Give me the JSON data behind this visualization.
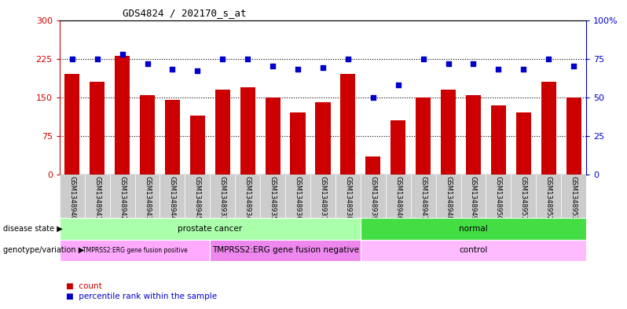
{
  "title": "GDS4824 / 202170_s_at",
  "samples": [
    "GSM1348940",
    "GSM1348941",
    "GSM1348942",
    "GSM1348943",
    "GSM1348944",
    "GSM1348945",
    "GSM1348933",
    "GSM1348934",
    "GSM1348935",
    "GSM1348936",
    "GSM1348937",
    "GSM1348938",
    "GSM1348939",
    "GSM1348946",
    "GSM1348947",
    "GSM1348948",
    "GSM1348949",
    "GSM1348950",
    "GSM1348951",
    "GSM1348952",
    "GSM1348953"
  ],
  "counts": [
    195,
    180,
    230,
    155,
    145,
    115,
    165,
    170,
    150,
    120,
    140,
    195,
    35,
    105,
    150,
    165,
    155,
    135,
    120,
    180,
    150
  ],
  "percentiles": [
    75,
    75,
    78,
    72,
    68,
    67,
    75,
    75,
    70,
    68,
    69,
    75,
    50,
    58,
    75,
    72,
    72,
    68,
    68,
    75,
    70
  ],
  "ylim_left": [
    0,
    300
  ],
  "ylim_right": [
    0,
    100
  ],
  "yticks_left": [
    0,
    75,
    150,
    225,
    300
  ],
  "yticks_right": [
    0,
    25,
    50,
    75,
    100
  ],
  "bar_color": "#cc0000",
  "dot_color": "#0000cc",
  "disease_state_groups": [
    {
      "label": "prostate cancer",
      "start": 0,
      "end": 12,
      "color": "#aaffaa"
    },
    {
      "label": "normal",
      "start": 12,
      "end": 21,
      "color": "#44dd44"
    }
  ],
  "genotype_groups": [
    {
      "label": "TMPRSS2:ERG gene fusion positive",
      "start": 0,
      "end": 6,
      "color": "#ffaaff"
    },
    {
      "label": "TMPRSS2:ERG gene fusion negative",
      "start": 6,
      "end": 12,
      "color": "#ee88ee"
    },
    {
      "label": "control",
      "start": 12,
      "end": 21,
      "color": "#ffbbff"
    }
  ],
  "legend_count_label": "count",
  "legend_percentile_label": "percentile rank within the sample",
  "disease_state_label": "disease state",
  "genotype_label": "genotype/variation",
  "bg_color": "#ffffff",
  "axis_label_color_left": "#cc0000",
  "axis_label_color_right": "#0000cc",
  "xticklabel_bg": "#cccccc",
  "grid_yticks": [
    75,
    150,
    225
  ]
}
